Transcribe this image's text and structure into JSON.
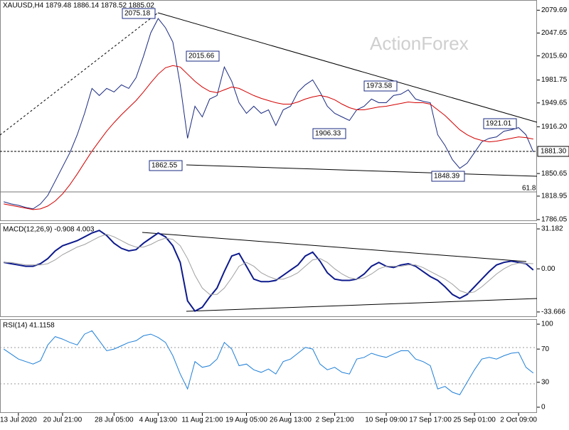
{
  "chart_data": [
    {
      "type": "line",
      "title": "XAUUSD,H4  1879.48 1886.14 1878.52 1885.02",
      "watermark": "ActionForex",
      "ylim": [
        1784,
        2092
      ],
      "yticks": [
        2079.69,
        2047.65,
        {
          "value": 2015.6,
          "label": "2015.60"
        },
        1981.75,
        1949.65,
        {
          "value": 1916.2,
          "label": "1916.20"
        },
        1850.65,
        1818.95,
        1786.05
      ],
      "last_label": "1881.30",
      "level_label": "61.8",
      "annotations": [
        "2075.18",
        "2015.66",
        "1973.58",
        "1906.33",
        "1862.55",
        "1848.39",
        "1921.01"
      ],
      "series": [
        {
          "color": "#1a2a80",
          "values": [
            1811,
            1808,
            1806,
            1803,
            1801,
            1808,
            1820,
            1840,
            1860,
            1880,
            1905,
            1935,
            1970,
            1960,
            1970,
            1965,
            1975,
            1970,
            1985,
            2015,
            2048,
            2068,
            2055,
            2035,
            1975,
            1900,
            1945,
            1930,
            1955,
            1960,
            2000,
            1980,
            1950,
            1935,
            1945,
            1935,
            1940,
            1918,
            1940,
            1945,
            1965,
            1975,
            1982,
            1965,
            1945,
            1935,
            1930,
            1925,
            1940,
            1945,
            1955,
            1950,
            1950,
            1960,
            1962,
            1968,
            1955,
            1952,
            1950,
            1905,
            1890,
            1870,
            1858,
            1865,
            1880,
            1895,
            1900,
            1902,
            1910,
            1912,
            1915,
            1905,
            1881
          ]
        },
        {
          "color": "#d40000",
          "values": [
            1808,
            1806,
            1804,
            1802,
            1800,
            1801,
            1805,
            1812,
            1822,
            1835,
            1850,
            1866,
            1882,
            1896,
            1910,
            1922,
            1933,
            1943,
            1953,
            1965,
            1978,
            1990,
            1999,
            2002,
            2000,
            1990,
            1980,
            1972,
            1966,
            1964,
            1968,
            1972,
            1970,
            1965,
            1960,
            1956,
            1953,
            1950,
            1948,
            1948,
            1951,
            1955,
            1958,
            1960,
            1958,
            1954,
            1948,
            1943,
            1940,
            1940,
            1942,
            1944,
            1945,
            1947,
            1949,
            1951,
            1950,
            1950,
            1948,
            1940,
            1932,
            1922,
            1912,
            1905,
            1900,
            1897,
            1895,
            1896,
            1898,
            1900,
            1902,
            1901,
            1899
          ]
        }
      ]
    },
    {
      "type": "line",
      "title": "MACD(12,26,9) -0.908 4.003",
      "ylim": [
        -37.6,
        35.1
      ],
      "yticks": [
        31.182,
        {
          "value": 0,
          "label": "0.00"
        },
        -33.666
      ],
      "series": [
        {
          "color": "#0d1a8c",
          "values": [
            5,
            4,
            3,
            2,
            2,
            4,
            8,
            14,
            18,
            20,
            22,
            25,
            28,
            30,
            26,
            20,
            16,
            14,
            15,
            20,
            24,
            28,
            25,
            18,
            5,
            -25,
            -33,
            -30,
            -22,
            -15,
            -2,
            10,
            12,
            2,
            -8,
            -10,
            -10,
            -9,
            -5,
            -1,
            3,
            10,
            13,
            6,
            -3,
            -8,
            -9,
            -9,
            -8,
            -4,
            2,
            5,
            2,
            1,
            3,
            4,
            2,
            -2,
            -6,
            -9,
            -14,
            -20,
            -23,
            -20,
            -14,
            -8,
            -2,
            3,
            5,
            6,
            5,
            4,
            -0.908
          ]
        },
        {
          "color": "#a0a0a0",
          "values": [
            5,
            5,
            4,
            3,
            3,
            3,
            4,
            7,
            11,
            14,
            17,
            19,
            22,
            25,
            27,
            25,
            22,
            19,
            17,
            17,
            19,
            22,
            24,
            23,
            18,
            8,
            -5,
            -15,
            -20,
            -20,
            -15,
            -7,
            2,
            5,
            2,
            -3,
            -6,
            -8,
            -8,
            -6,
            -3,
            2,
            7,
            8,
            5,
            0,
            -4,
            -7,
            -8,
            -7,
            -4,
            0,
            2,
            2,
            2,
            3,
            3,
            1,
            -2,
            -5,
            -8,
            -12,
            -17,
            -19,
            -18,
            -14,
            -9,
            -4,
            0,
            3,
            4.5,
            4.3,
            4.003
          ]
        }
      ]
    },
    {
      "type": "line",
      "title": "RSI(14) 41.1158",
      "ylim": [
        -6.9,
        105.2
      ],
      "yticks": [
        100,
        70,
        30,
        0
      ],
      "categories": [
        null,
        null,
        "13 Jul 2020",
        null,
        null,
        null,
        null,
        null,
        "20 Jul 21:00",
        null,
        null,
        null,
        null,
        null,
        null,
        "28 Jul 05:00",
        null,
        null,
        null,
        null,
        null,
        "4 Aug 13:00",
        null,
        null,
        null,
        null,
        null,
        "11 Aug 21:00",
        null,
        null,
        null,
        null,
        null,
        "19 Aug 05:00",
        null,
        null,
        null,
        null,
        null,
        "26 Aug 13:00",
        null,
        null,
        null,
        null,
        null,
        "2 Sep 21:00",
        null,
        null,
        null,
        null,
        null,
        null,
        "10 Sep 09:00",
        null,
        null,
        null,
        null,
        null,
        "17 Sep 17:00",
        null,
        null,
        null,
        null,
        null,
        "25 Sep 01:00",
        null,
        null,
        null,
        null,
        null,
        "2 Oct 09:00",
        null,
        null
      ],
      "series": [
        {
          "color": "#1e7fd8",
          "values": [
            70,
            64,
            58,
            55,
            52,
            56,
            75,
            85,
            82,
            78,
            75,
            88,
            92,
            80,
            68,
            70,
            74,
            78,
            80,
            86,
            88,
            84,
            78,
            62,
            40,
            22,
            55,
            48,
            50,
            58,
            78,
            70,
            50,
            52,
            45,
            42,
            46,
            40,
            55,
            58,
            65,
            72,
            70,
            52,
            45,
            48,
            42,
            40,
            58,
            60,
            65,
            62,
            60,
            64,
            68,
            68,
            58,
            55,
            50,
            22,
            25,
            18,
            15,
            30,
            45,
            58,
            60,
            58,
            62,
            65,
            66,
            48,
            41.1158
          ]
        }
      ]
    }
  ]
}
